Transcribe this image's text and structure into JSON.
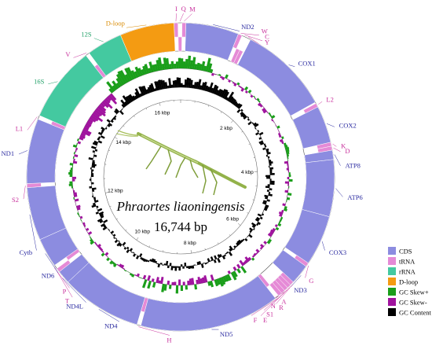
{
  "title": "Phraortes liaoningensis",
  "genome_size": "16,744 bp",
  "colors": {
    "cds": "#8c8ce0",
    "trna": "#e58ad6",
    "rrna": "#44c9a0",
    "dloop": "#f49b12",
    "gc_skew_pos": "#1a9e1a",
    "gc_skew_neg": "#a0139e",
    "gc_content": "#000000",
    "cds_label": "#2a2aa0",
    "trna_label": "#c8309c",
    "rrna_label": "#20a068",
    "dloop_label": "#d98a00"
  },
  "kbp_ticks": [
    "2 kbp",
    "4 kbp",
    "6 kbp",
    "8 kbp",
    "10 kbp",
    "12 kbp",
    "14 kbp",
    "16 kbp"
  ],
  "genes": [
    {
      "label": "I",
      "type": "trna",
      "strand": "outer"
    },
    {
      "label": "Q",
      "type": "trna",
      "strand": "inner"
    },
    {
      "label": "M",
      "type": "trna",
      "strand": "outer"
    },
    {
      "label": "ND2",
      "type": "cds",
      "strand": "outer"
    },
    {
      "label": "W",
      "type": "trna",
      "strand": "outer"
    },
    {
      "label": "C",
      "type": "trna",
      "strand": "inner"
    },
    {
      "label": "Y",
      "type": "trna",
      "strand": "inner"
    },
    {
      "label": "COX1",
      "type": "cds",
      "strand": "outer"
    },
    {
      "label": "L2",
      "type": "trna",
      "strand": "outer"
    },
    {
      "label": "COX2",
      "type": "cds",
      "strand": "outer"
    },
    {
      "label": "K",
      "type": "trna",
      "strand": "outer"
    },
    {
      "label": "D",
      "type": "trna",
      "strand": "outer"
    },
    {
      "label": "ATP8",
      "type": "cds",
      "strand": "outer"
    },
    {
      "label": "ATP6",
      "type": "cds",
      "strand": "outer"
    },
    {
      "label": "COX3",
      "type": "cds",
      "strand": "outer"
    },
    {
      "label": "G",
      "type": "trna",
      "strand": "outer"
    },
    {
      "label": "ND3",
      "type": "cds",
      "strand": "outer"
    },
    {
      "label": "A",
      "type": "trna",
      "strand": "outer"
    },
    {
      "label": "R",
      "type": "trna",
      "strand": "outer"
    },
    {
      "label": "N",
      "type": "trna",
      "strand": "outer"
    },
    {
      "label": "S1",
      "type": "trna",
      "strand": "outer"
    },
    {
      "label": "E",
      "type": "trna",
      "strand": "outer"
    },
    {
      "label": "F",
      "type": "trna",
      "strand": "inner"
    },
    {
      "label": "ND5",
      "type": "cds",
      "strand": "inner"
    },
    {
      "label": "H",
      "type": "trna",
      "strand": "inner"
    },
    {
      "label": "ND4",
      "type": "cds",
      "strand": "inner"
    },
    {
      "label": "ND4L",
      "type": "cds",
      "strand": "inner"
    },
    {
      "label": "T",
      "type": "trna",
      "strand": "outer"
    },
    {
      "label": "P",
      "type": "trna",
      "strand": "inner"
    },
    {
      "label": "ND6",
      "type": "cds",
      "strand": "outer"
    },
    {
      "label": "Cytb",
      "type": "cds",
      "strand": "outer"
    },
    {
      "label": "S2",
      "type": "trna",
      "strand": "outer"
    },
    {
      "label": "ND1",
      "type": "cds",
      "strand": "inner"
    },
    {
      "label": "L1",
      "type": "trna",
      "strand": "inner"
    },
    {
      "label": "16S",
      "type": "rrna",
      "strand": "inner"
    },
    {
      "label": "V",
      "type": "trna",
      "strand": "inner"
    },
    {
      "label": "12S",
      "type": "rrna",
      "strand": "inner"
    },
    {
      "label": "D-loop",
      "type": "dloop",
      "strand": "outer"
    }
  ],
  "legend": [
    {
      "label": "CDS",
      "key": "cds"
    },
    {
      "label": "tRNA",
      "key": "trna"
    },
    {
      "label": "rRNA",
      "key": "rrna"
    },
    {
      "label": "D-loop",
      "key": "dloop"
    },
    {
      "label": "GC Skew+",
      "key": "gc_skew_pos"
    },
    {
      "label": "GC Skew-",
      "key": "gc_skew_neg"
    },
    {
      "label": "GC Content",
      "key": "gc_content"
    }
  ]
}
